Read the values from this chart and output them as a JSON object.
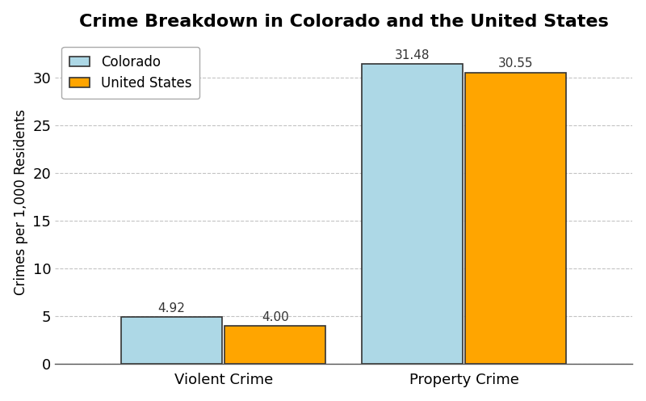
{
  "title": "Crime Breakdown in Colorado and the United States",
  "categories": [
    "Violent Crime",
    "Property Crime"
  ],
  "colorado_values": [
    4.92,
    31.48
  ],
  "us_values": [
    4.0,
    30.55
  ],
  "colorado_color": "#ADD8E6",
  "us_color": "#FFA500",
  "colorado_label": "Colorado",
  "us_label": "United States",
  "ylabel": "Crimes per 1,000 Residents",
  "ylim": [
    0,
    34
  ],
  "yticks": [
    0,
    5,
    10,
    15,
    20,
    25,
    30
  ],
  "bar_width": 0.42,
  "bar_gap": 0.01,
  "title_fontsize": 16,
  "label_fontsize": 12,
  "tick_fontsize": 13,
  "annotation_fontsize": 11,
  "background_color": "#FFFFFF",
  "grid_color": "#AAAAAA",
  "bar_edgecolor": "#333333"
}
